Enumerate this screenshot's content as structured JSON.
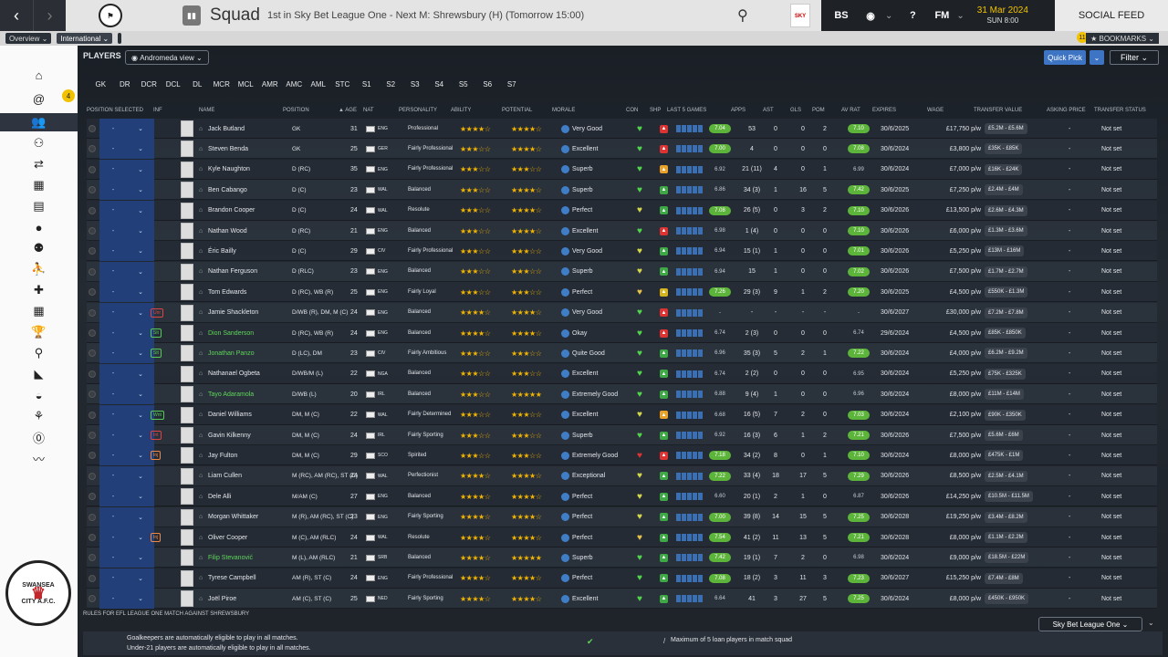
{
  "header": {
    "title": "Squad",
    "subtitle": "1st in Sky Bet League One - Next M: Shrewsbury (H) (Tomorrow 15:00)",
    "date": "31 Mar 2024",
    "time": "SUN 8:00",
    "social": "SOCIAL FEED",
    "league_badge": "SKY BET",
    "icon_bs": "BS",
    "icon_fm": "FM"
  },
  "subbar": {
    "overview": "Overview",
    "international": "International",
    "bookmarks": "★ BOOKMARKS",
    "bookmarks_badge": "11"
  },
  "sidebar": {
    "badge": "4"
  },
  "club": {
    "top": "SWANSEA",
    "bottom": "CITY A.F.C."
  },
  "main": {
    "players_label": "PLAYERS",
    "view": "Andromeda view",
    "quick_pick": "Quick Pick",
    "filter": "Filter"
  },
  "pos_tabs": [
    "GK",
    "DR",
    "DCR",
    "DCL",
    "DL",
    "MCR",
    "MCL",
    "AMR",
    "AMC",
    "AML",
    "STC",
    "S1",
    "S2",
    "S3",
    "S4",
    "S5",
    "S6",
    "S7"
  ],
  "columns": {
    "pos_sel": "POSITION SELECTED",
    "inf": "INF",
    "name": "NAME",
    "position": "POSITION",
    "age": "▲ AGE",
    "nat": "NAT",
    "personality": "PERSONALITY",
    "ability": "ABILITY",
    "potential": "POTENTIAL",
    "morale": "MORALE",
    "con": "CON",
    "shp": "SHP",
    "last5": "LAST 5 GAMES",
    "apps": "APPS",
    "ast": "AST",
    "gls": "GLS",
    "pom": "POM",
    "avrat": "AV RAT",
    "expires": "EXPIRES",
    "wage": "WAGE",
    "tv": "TRANSFER VALUE",
    "ask": "ASKING PRICE",
    "ts": "TRANSFER STATUS"
  },
  "players": [
    {
      "name": "Jack Butland",
      "pos": "GK",
      "age": "31",
      "nat": "ENG",
      "pers": "Professional",
      "ab": 3.5,
      "pot": 3.5,
      "mor": "Very Good",
      "rat": "7.04",
      "apps": "53",
      "ast": "0",
      "gls": "0",
      "pom": "2",
      "av": "7.10",
      "exp": "30/6/2025",
      "wage": "£17,750 p/w",
      "tv": "£5.2M - £5.6M",
      "ask": "-",
      "ts": "Not set",
      "inf": "",
      "green": false
    },
    {
      "name": "Steven Benda",
      "pos": "GK",
      "age": "25",
      "nat": "GER",
      "pers": "Fairly Professional",
      "ab": 3,
      "pot": 3.5,
      "mor": "Excellent",
      "rat": "7.00",
      "apps": "4",
      "ast": "0",
      "gls": "0",
      "pom": "0",
      "av": "7.08",
      "exp": "30/6/2024",
      "wage": "£3,800 p/w",
      "tv": "£35K - £85K",
      "ask": "-",
      "ts": "Not set",
      "inf": "",
      "green": false
    },
    {
      "name": "Kyle Naughton",
      "pos": "D (RC)",
      "age": "35",
      "nat": "ENG",
      "pers": "Fairly Professional",
      "ab": 2.5,
      "pot": 2.5,
      "mor": "Superb",
      "rat": "6.92",
      "apps": "21 (11)",
      "ast": "4",
      "gls": "0",
      "pom": "1",
      "av": "6.99",
      "exp": "30/6/2024",
      "wage": "£7,000 p/w",
      "tv": "£16K - £24K",
      "ask": "-",
      "ts": "Not set",
      "inf": "",
      "green": false
    },
    {
      "name": "Ben Cabango",
      "pos": "D (C)",
      "age": "23",
      "nat": "WAL",
      "pers": "Balanced",
      "ab": 3,
      "pot": 4,
      "mor": "Superb",
      "rat": "6.86",
      "apps": "34 (3)",
      "ast": "1",
      "gls": "16",
      "pom": "5",
      "av": "7.42",
      "exp": "30/6/2025",
      "wage": "£7,250 p/w",
      "tv": "£2.4M - £4M",
      "ask": "-",
      "ts": "Not set",
      "inf": "",
      "green": false
    },
    {
      "name": "Brandon Cooper",
      "pos": "D (C)",
      "age": "24",
      "nat": "WAL",
      "pers": "Resolute",
      "ab": 3,
      "pot": 3.5,
      "mor": "Perfect",
      "rat": "7.08",
      "apps": "26 (5)",
      "ast": "0",
      "gls": "3",
      "pom": "2",
      "av": "7.10",
      "exp": "30/6/2026",
      "wage": "£13,500 p/w",
      "tv": "£2.6M - £4.3M",
      "ask": "-",
      "ts": "Not set",
      "inf": "",
      "green": false
    },
    {
      "name": "Nathan Wood",
      "pos": "D (RC)",
      "age": "21",
      "nat": "ENG",
      "pers": "Balanced",
      "ab": 2.5,
      "pot": 4,
      "mor": "Excellent",
      "rat": "6.98",
      "apps": "1 (4)",
      "ast": "0",
      "gls": "0",
      "pom": "0",
      "av": "7.10",
      "exp": "30/6/2026",
      "wage": "£6,000 p/w",
      "tv": "£1.3M - £3.6M",
      "ask": "-",
      "ts": "Not set",
      "inf": "",
      "green": false
    },
    {
      "name": "Éric Bailly",
      "pos": "D (C)",
      "age": "29",
      "nat": "CIV",
      "pers": "Fairly Professional",
      "ab": 3,
      "pot": 3,
      "mor": "Very Good",
      "rat": "6.94",
      "apps": "15 (1)",
      "ast": "1",
      "gls": "0",
      "pom": "0",
      "av": "7.01",
      "exp": "30/6/2026",
      "wage": "£5,250 p/w",
      "tv": "£13M - £16M",
      "ask": "-",
      "ts": "Not set",
      "inf": "",
      "green": false
    },
    {
      "name": "Nathan Ferguson",
      "pos": "D (RLC)",
      "age": "23",
      "nat": "ENG",
      "pers": "Balanced",
      "ab": 3,
      "pot": 3,
      "mor": "Superb",
      "rat": "6.94",
      "apps": "15",
      "ast": "1",
      "gls": "0",
      "pom": "0",
      "av": "7.02",
      "exp": "30/6/2026",
      "wage": "£7,500 p/w",
      "tv": "£1.7M - £2.7M",
      "ask": "-",
      "ts": "Not set",
      "inf": "",
      "green": false
    },
    {
      "name": "Tom Edwards",
      "pos": "D (RC), WB (R)",
      "age": "25",
      "nat": "ENG",
      "pers": "Fairly Loyal",
      "ab": 3,
      "pot": 3,
      "mor": "Perfect",
      "rat": "7.26",
      "apps": "29 (3)",
      "ast": "9",
      "gls": "1",
      "pom": "2",
      "av": "7.20",
      "exp": "30/6/2025",
      "wage": "£4,500 p/w",
      "tv": "£550K - £1.3M",
      "ask": "-",
      "ts": "Not set",
      "inf": "",
      "green": false
    },
    {
      "name": "Jamie Shackleton",
      "pos": "D/WB (R), DM, M (C)",
      "age": "24",
      "nat": "ENG",
      "pers": "Balanced",
      "ab": 3.5,
      "pot": 3.5,
      "mor": "Very Good",
      "rat": "-",
      "apps": "-",
      "ast": "-",
      "gls": "-",
      "pom": "-",
      "av": "-",
      "exp": "30/6/2027",
      "wage": "£30,000 p/w",
      "tv": "£7.2M - £7.8M",
      "ask": "-",
      "ts": "Not set",
      "inf": "Unr",
      "green": false
    },
    {
      "name": "Dion Sanderson",
      "pos": "D (RC), WB (R)",
      "age": "24",
      "nat": "ENG",
      "pers": "Balanced",
      "ab": 3.5,
      "pot": 3.5,
      "mor": "Okay",
      "rat": "6.74",
      "apps": "2 (3)",
      "ast": "0",
      "gls": "0",
      "pom": "0",
      "av": "6.74",
      "exp": "29/6/2024",
      "wage": "£4,500 p/w",
      "tv": "£85K - £850K",
      "ask": "-",
      "ts": "Not set",
      "inf": "Slt",
      "green": true
    },
    {
      "name": "Jonathan Panzo",
      "pos": "D (LC), DM",
      "age": "23",
      "nat": "CIV",
      "pers": "Fairly Ambitious",
      "ab": 3,
      "pot": 3,
      "mor": "Quite Good",
      "rat": "6.96",
      "apps": "35 (3)",
      "ast": "5",
      "gls": "2",
      "pom": "1",
      "av": "7.22",
      "exp": "30/6/2024",
      "wage": "£4,000 p/w",
      "tv": "£6.2M - £9.2M",
      "ask": "-",
      "ts": "Not set",
      "inf": "Slt",
      "green": true
    },
    {
      "name": "Nathanael Ogbeta",
      "pos": "D/WB/M (L)",
      "age": "22",
      "nat": "NGA",
      "pers": "Balanced",
      "ab": 3,
      "pot": 3,
      "mor": "Excellent",
      "rat": "6.74",
      "apps": "2 (2)",
      "ast": "0",
      "gls": "0",
      "pom": "0",
      "av": "6.95",
      "exp": "30/6/2024",
      "wage": "£5,250 p/w",
      "tv": "£75K - £325K",
      "ask": "-",
      "ts": "Not set",
      "inf": "",
      "green": false
    },
    {
      "name": "Tayo Adaramola",
      "pos": "D/WB (L)",
      "age": "20",
      "nat": "IRL",
      "pers": "Balanced",
      "ab": 3,
      "pot": 4.5,
      "mor": "Extremely Good",
      "rat": "6.88",
      "apps": "9 (4)",
      "ast": "1",
      "gls": "0",
      "pom": "0",
      "av": "6.96",
      "exp": "30/6/2024",
      "wage": "£8,000 p/w",
      "tv": "£11M - £14M",
      "ask": "-",
      "ts": "Not set",
      "inf": "",
      "green": true
    },
    {
      "name": "Daniel Williams",
      "pos": "DM, M (C)",
      "age": "22",
      "nat": "WAL",
      "pers": "Fairly Determined",
      "ab": 3,
      "pot": 3,
      "mor": "Excellent",
      "rat": "6.68",
      "apps": "16 (5)",
      "ast": "7",
      "gls": "2",
      "pom": "0",
      "av": "7.03",
      "exp": "30/6/2024",
      "wage": "£2,100 p/w",
      "tv": "£90K - £350K",
      "ask": "-",
      "ts": "Not set",
      "inf": "Wnt",
      "green": false
    },
    {
      "name": "Gavin Kilkenny",
      "pos": "DM, M (C)",
      "age": "24",
      "nat": "IRL",
      "pers": "Fairly Sporting",
      "ab": 3,
      "pot": 3,
      "mor": "Superb",
      "rat": "6.92",
      "apps": "16 (3)",
      "ast": "6",
      "gls": "1",
      "pom": "2",
      "av": "7.21",
      "exp": "30/6/2026",
      "wage": "£7,500 p/w",
      "tv": "£5.6M - £6M",
      "ask": "-",
      "ts": "Not set",
      "inf": "Int",
      "green": false
    },
    {
      "name": "Jay Fulton",
      "pos": "DM, M (C)",
      "age": "29",
      "nat": "SCO",
      "pers": "Spirited",
      "ab": 3,
      "pot": 3,
      "mor": "Extremely Good",
      "rat": "7.18",
      "apps": "34 (2)",
      "ast": "8",
      "gls": "0",
      "pom": "1",
      "av": "7.10",
      "exp": "30/6/2024",
      "wage": "£8,000 p/w",
      "tv": "£475K - £1M",
      "ask": "-",
      "ts": "Not set",
      "inf": "Inj",
      "green": false
    },
    {
      "name": "Liam Cullen",
      "pos": "M (RC), AM (RC), ST (C)",
      "age": "24",
      "nat": "WAL",
      "pers": "Perfectionist",
      "ab": 4,
      "pot": 4,
      "mor": "Exceptional",
      "rat": "7.22",
      "apps": "33 (4)",
      "ast": "18",
      "gls": "17",
      "pom": "5",
      "av": "7.29",
      "exp": "30/6/2026",
      "wage": "£8,500 p/w",
      "tv": "£2.5M - £4.1M",
      "ask": "-",
      "ts": "Not set",
      "inf": "",
      "green": false
    },
    {
      "name": "Dele Alli",
      "pos": "M/AM (C)",
      "age": "27",
      "nat": "ENG",
      "pers": "Balanced",
      "ab": 3.5,
      "pot": 3.5,
      "mor": "Perfect",
      "rat": "6.60",
      "apps": "20 (1)",
      "ast": "2",
      "gls": "1",
      "pom": "0",
      "av": "6.87",
      "exp": "30/6/2026",
      "wage": "£14,250 p/w",
      "tv": "£10.5M - £11.5M",
      "ask": "-",
      "ts": "Not set",
      "inf": "",
      "green": false
    },
    {
      "name": "Morgan Whittaker",
      "pos": "M (R), AM (RC), ST (C)",
      "age": "23",
      "nat": "ENG",
      "pers": "Fairly Sporting",
      "ab": 4,
      "pot": 4,
      "mor": "Perfect",
      "rat": "7.00",
      "apps": "39 (8)",
      "ast": "14",
      "gls": "15",
      "pom": "5",
      "av": "7.25",
      "exp": "30/6/2028",
      "wage": "£19,250 p/w",
      "tv": "£3.4M - £8.2M",
      "ask": "-",
      "ts": "Not set",
      "inf": "",
      "green": false
    },
    {
      "name": "Oliver Cooper",
      "pos": "M (C), AM (RLC)",
      "age": "24",
      "nat": "WAL",
      "pers": "Resolute",
      "ab": 4,
      "pot": 4,
      "mor": "Perfect",
      "rat": "7.54",
      "apps": "41 (2)",
      "ast": "11",
      "gls": "13",
      "pom": "5",
      "av": "7.21",
      "exp": "30/6/2028",
      "wage": "£8,000 p/w",
      "tv": "£1.1M - £2.2M",
      "ask": "-",
      "ts": "Not set",
      "inf": "Inj",
      "green": false
    },
    {
      "name": "Filip Stevanović",
      "pos": "M (L), AM (RLC)",
      "age": "21",
      "nat": "SRB",
      "pers": "Balanced",
      "ab": 3.5,
      "pot": 4.5,
      "mor": "Superb",
      "rat": "7.42",
      "apps": "19 (1)",
      "ast": "7",
      "gls": "2",
      "pom": "0",
      "av": "6.98",
      "exp": "30/6/2024",
      "wage": "£9,000 p/w",
      "tv": "£18.5M - £22M",
      "ask": "-",
      "ts": "Not set",
      "inf": "",
      "green": true
    },
    {
      "name": "Tyrese Campbell",
      "pos": "AM (R), ST (C)",
      "age": "24",
      "nat": "ENG",
      "pers": "Fairly Professional",
      "ab": 4,
      "pot": 4,
      "mor": "Perfect",
      "rat": "7.08",
      "apps": "18 (2)",
      "ast": "3",
      "gls": "11",
      "pom": "3",
      "av": "7.23",
      "exp": "30/6/2027",
      "wage": "£15,250 p/w",
      "tv": "£7.4M - £8M",
      "ask": "-",
      "ts": "Not set",
      "inf": "",
      "green": false
    },
    {
      "name": "Joël Piroe",
      "pos": "AM (C), ST (C)",
      "age": "25",
      "nat": "NED",
      "pers": "Fairly Sporting",
      "ab": 4,
      "pot": 4,
      "mor": "Excellent",
      "rat": "6.64",
      "apps": "41",
      "ast": "3",
      "gls": "27",
      "pom": "5",
      "av": "7.25",
      "exp": "30/6/2024",
      "wage": "£8,000 p/w",
      "tv": "£450K - £950K",
      "ask": "-",
      "ts": "Not set",
      "inf": "",
      "green": false
    }
  ],
  "rules": {
    "title": "RULES FOR EFL LEAGUE ONE MATCH AGAINST SHREWSBURY",
    "league": "Sky Bet League One",
    "r1": "Goalkeepers are automatically eligible to play in all matches.",
    "r2": "Under-21 players are automatically eligible to play in all matches.",
    "r3": "Maximum of 5 loan players in match squad"
  },
  "colors": {
    "accent": "#3d74c4",
    "rating_green": "#5cb53a",
    "star": "#f2b400"
  }
}
